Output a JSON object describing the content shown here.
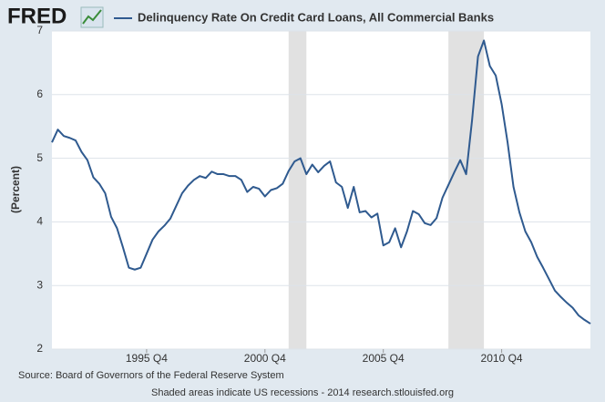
{
  "logo": "FRED",
  "chart_data": {
    "type": "line",
    "y_label": "(Percent)",
    "x": [
      "1991 Q4",
      "1992 Q1",
      "1992 Q2",
      "1992 Q3",
      "1992 Q4",
      "1993 Q1",
      "1993 Q2",
      "1993 Q3",
      "1993 Q4",
      "1994 Q1",
      "1994 Q2",
      "1994 Q3",
      "1994 Q4",
      "1995 Q1",
      "1995 Q2",
      "1995 Q3",
      "1995 Q4",
      "1996 Q1",
      "1996 Q2",
      "1996 Q3",
      "1996 Q4",
      "1997 Q1",
      "1997 Q2",
      "1997 Q3",
      "1997 Q4",
      "1998 Q1",
      "1998 Q2",
      "1998 Q3",
      "1998 Q4",
      "1999 Q1",
      "1999 Q2",
      "1999 Q3",
      "1999 Q4",
      "2000 Q1",
      "2000 Q2",
      "2000 Q3",
      "2000 Q4",
      "2001 Q1",
      "2001 Q2",
      "2001 Q3",
      "2001 Q4",
      "2002 Q1",
      "2002 Q2",
      "2002 Q3",
      "2002 Q4",
      "2003 Q1",
      "2003 Q2",
      "2003 Q3",
      "2003 Q4",
      "2004 Q1",
      "2004 Q2",
      "2004 Q3",
      "2004 Q4",
      "2005 Q1",
      "2005 Q2",
      "2005 Q3",
      "2005 Q4",
      "2006 Q1",
      "2006 Q2",
      "2006 Q3",
      "2006 Q4",
      "2007 Q1",
      "2007 Q2",
      "2007 Q3",
      "2007 Q4",
      "2008 Q1",
      "2008 Q2",
      "2008 Q3",
      "2008 Q4",
      "2009 Q1",
      "2009 Q2",
      "2009 Q3",
      "2009 Q4",
      "2010 Q1",
      "2010 Q2",
      "2010 Q3",
      "2010 Q4",
      "2011 Q1",
      "2011 Q2",
      "2011 Q3",
      "2011 Q4",
      "2012 Q1",
      "2012 Q2",
      "2012 Q3",
      "2012 Q4",
      "2013 Q1",
      "2013 Q2",
      "2013 Q3",
      "2013 Q4",
      "2014 Q1",
      "2014 Q2",
      "2014 Q3"
    ],
    "series": [
      {
        "name": "Delinquency Rate On Credit Card Loans, All Commercial Banks",
        "color": "#2f5a8f",
        "values": [
          5.25,
          5.45,
          5.35,
          5.32,
          5.28,
          5.1,
          4.97,
          4.7,
          4.6,
          4.45,
          4.08,
          3.9,
          3.6,
          3.28,
          3.25,
          3.28,
          3.5,
          3.72,
          3.85,
          3.94,
          4.05,
          4.25,
          4.45,
          4.57,
          4.66,
          4.72,
          4.69,
          4.79,
          4.75,
          4.75,
          4.72,
          4.72,
          4.66,
          4.47,
          4.55,
          4.52,
          4.4,
          4.5,
          4.53,
          4.6,
          4.8,
          4.95,
          5.0,
          4.75,
          4.9,
          4.78,
          4.88,
          4.95,
          4.62,
          4.55,
          4.22,
          4.55,
          4.15,
          4.17,
          4.07,
          4.13,
          3.63,
          3.68,
          3.9,
          3.6,
          3.85,
          4.17,
          4.12,
          3.98,
          3.95,
          4.06,
          4.38,
          4.58,
          4.78,
          4.97,
          4.75,
          5.6,
          6.6,
          6.85,
          6.45,
          6.3,
          5.85,
          5.25,
          4.55,
          4.15,
          3.85,
          3.68,
          3.45,
          3.28,
          3.1,
          2.92,
          2.82,
          2.73,
          2.65,
          2.53,
          2.46,
          2.4
        ]
      }
    ],
    "xticks": [
      "1995 Q4",
      "2000 Q4",
      "2005 Q4",
      "2010 Q4"
    ],
    "ylim": [
      2,
      7
    ],
    "yticks": [
      2,
      3,
      4,
      5,
      6,
      7
    ],
    "grid": true,
    "recessions": [
      [
        "2001 Q4",
        "2002 Q3"
      ],
      [
        "2008 Q3",
        "2010 Q1"
      ]
    ],
    "source": "Source: Board of Governors of the Federal Reserve System",
    "note": "Shaded areas indicate US recessions - 2014 research.stlouisfed.org"
  }
}
